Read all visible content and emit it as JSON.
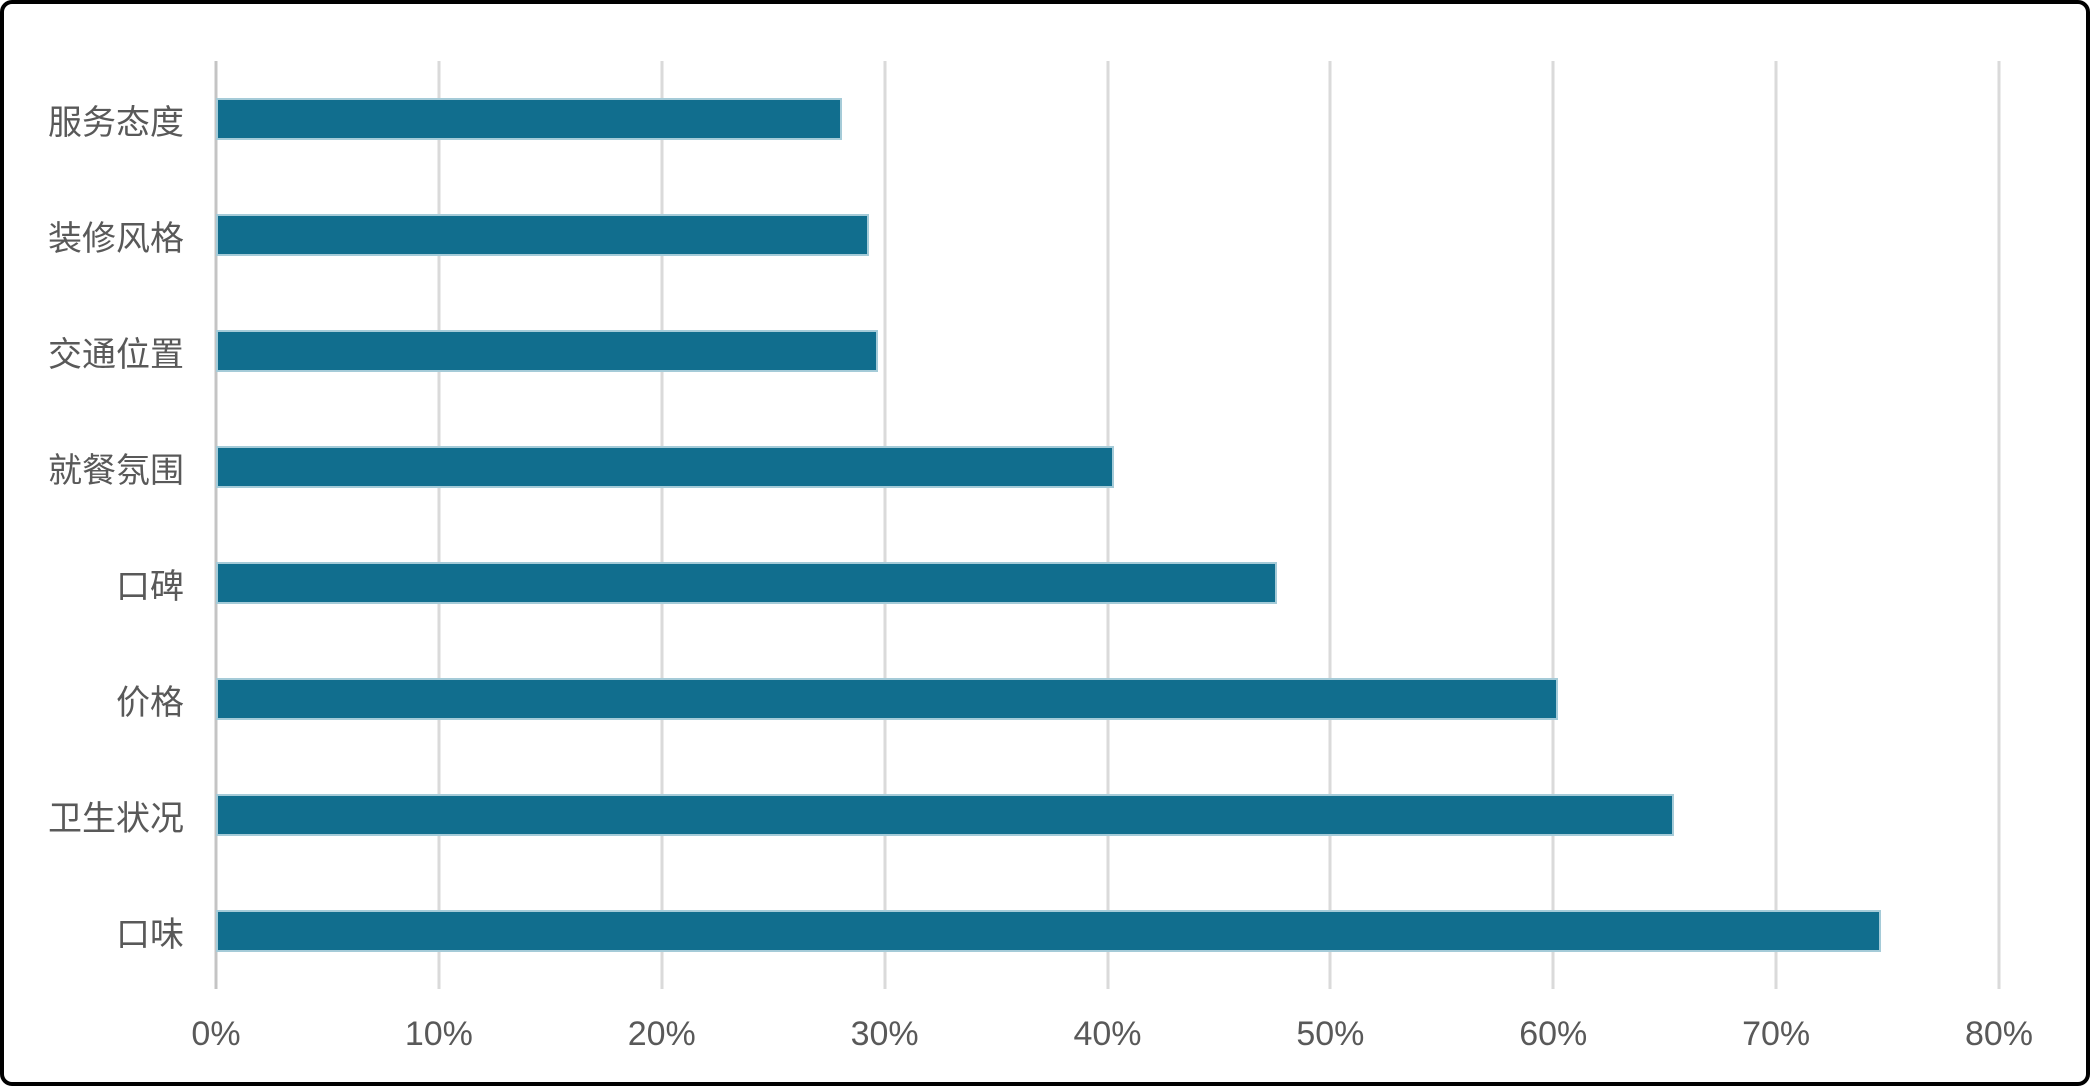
{
  "chart_data": {
    "type": "bar",
    "orientation": "horizontal",
    "title": "",
    "xlabel": "",
    "ylabel": "",
    "categories_top_to_bottom": [
      "服务态度",
      "装修风格",
      "交通位置",
      "就餐氛围",
      "口碑",
      "价格",
      "卫生状况",
      "口味"
    ],
    "values_percent": [
      28.1,
      29.3,
      29.7,
      40.3,
      47.6,
      60.2,
      65.4,
      74.7
    ],
    "unit": "%",
    "xlim": [
      0,
      80
    ],
    "tick_values": [
      0,
      10,
      20,
      30,
      40,
      50,
      60,
      70,
      80
    ],
    "tick_labels": [
      "0%",
      "10%",
      "20%",
      "30%",
      "40%",
      "50%",
      "60%",
      "70%",
      "80%"
    ],
    "grid": true,
    "legend": false,
    "colors": {
      "bar_fill": "#116e8e",
      "bar_border": "#a5cbd8",
      "gridline": "#dadada",
      "axis_line": "#c4c4c4",
      "tick_text": "#595959",
      "category_text": "#595959",
      "frame_border": "#000000",
      "background": "#ffffff"
    }
  }
}
